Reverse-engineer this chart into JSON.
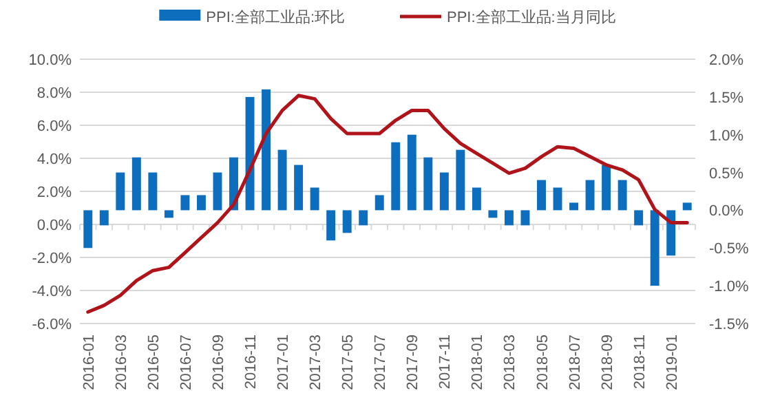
{
  "chart_data": {
    "type": "bar",
    "categories": [
      "2016-01",
      null,
      "2016-03",
      null,
      "2016-05",
      null,
      "2016-07",
      null,
      "2016-09",
      null,
      "2016-11",
      null,
      "2017-01",
      null,
      "2017-03",
      null,
      "2017-05",
      null,
      "2017-07",
      null,
      "2017-09",
      null,
      "2017-11",
      null,
      "2018-01",
      null,
      "2018-03",
      null,
      "2018-05",
      null,
      "2018-07",
      null,
      "2018-09",
      null,
      "2018-11",
      null,
      "2019-01",
      null
    ],
    "series": [
      {
        "name": "PPI:全部工业品:环比",
        "axis": "y2",
        "color": "#0e6ebe",
        "values": [
          -0.5,
          -0.2,
          0.5,
          0.7,
          0.5,
          -0.1,
          0.2,
          0.2,
          0.5,
          0.7,
          1.5,
          1.6,
          0.8,
          0.6,
          0.3,
          -0.4,
          -0.3,
          -0.2,
          0.2,
          0.9,
          1.0,
          0.7,
          0.5,
          0.8,
          0.3,
          -0.1,
          -0.2,
          -0.2,
          0.4,
          0.3,
          0.1,
          0.4,
          0.6,
          0.4,
          -0.2,
          -1.0,
          -0.6,
          0.1
        ]
      },
      {
        "name": "PPI:全部工业品:当月同比",
        "type": "line",
        "color": "#b0141b",
        "values": [
          -5.3,
          -4.9,
          -4.3,
          -3.4,
          -2.8,
          -2.6,
          -1.7,
          -0.8,
          0.1,
          1.2,
          3.3,
          5.5,
          6.9,
          7.8,
          7.6,
          6.4,
          5.5,
          5.5,
          5.5,
          6.3,
          6.9,
          6.9,
          5.8,
          4.9,
          4.3,
          3.7,
          3.1,
          3.4,
          4.1,
          4.7,
          4.6,
          4.1,
          3.6,
          3.3,
          2.7,
          0.9,
          0.1,
          0.1
        ]
      }
    ],
    "ylim": [
      -6,
      10
    ],
    "yticks": [
      {
        "value": -6,
        "label": "-6.0%"
      },
      {
        "value": -4,
        "label": "-4.0%"
      },
      {
        "value": -2,
        "label": "-2.0%"
      },
      {
        "value": 0,
        "label": "0.0%"
      },
      {
        "value": 2,
        "label": "2.0%"
      },
      {
        "value": 4,
        "label": "4.0%"
      },
      {
        "value": 6,
        "label": "6.0%"
      },
      {
        "value": 8,
        "label": "8.0%"
      },
      {
        "value": 10,
        "label": "10.0%"
      }
    ],
    "y2lim": [
      -1.5,
      2
    ],
    "y2ticks": [
      {
        "value": -1.5,
        "label": "-1.5%"
      },
      {
        "value": -1,
        "label": "-1.0%"
      },
      {
        "value": -0.5,
        "label": "-0.5%"
      },
      {
        "value": 0,
        "label": "0.0%"
      },
      {
        "value": 0.5,
        "label": "0.5%"
      },
      {
        "value": 1,
        "label": "1.0%"
      },
      {
        "value": 1.5,
        "label": "1.5%"
      },
      {
        "value": 2,
        "label": "2.0%"
      }
    ],
    "grid": "y",
    "legend": "top"
  }
}
